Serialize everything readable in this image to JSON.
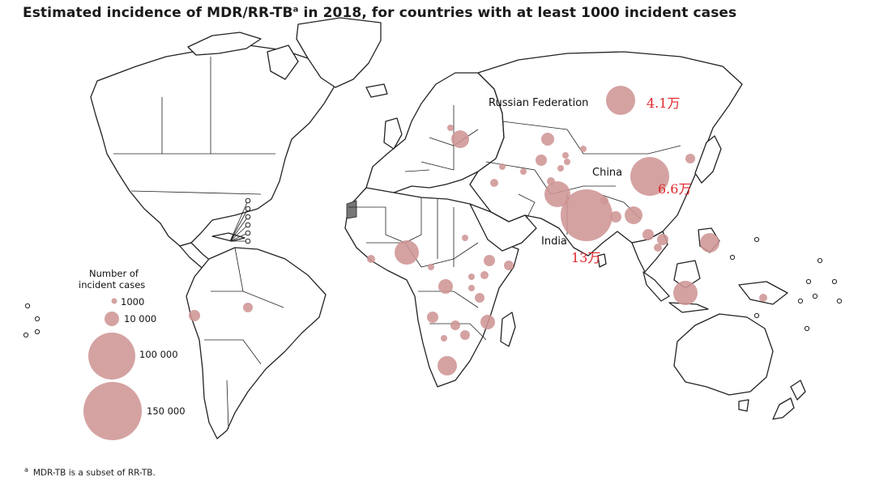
{
  "title": {
    "main": "Estimated incidence of MDR/RR-TB",
    "sup": "a",
    "rest": " in 2018, for countries with at least 1000 incident cases"
  },
  "footnote": {
    "marker": "a",
    "text": "MDR-TB is a subset of RR-TB."
  },
  "bubble_color": "#cf9595",
  "legend": {
    "title_line1": "Number of",
    "title_line2": "incident cases",
    "items": [
      {
        "value": 1000,
        "label": "1000"
      },
      {
        "value": 10000,
        "label": "10 000"
      },
      {
        "value": 100000,
        "label": "100 000"
      },
      {
        "value": 150000,
        "label": "150 000"
      }
    ]
  },
  "countries": [
    {
      "name": "Russian Federation",
      "annotation": "4.1万"
    },
    {
      "name": "China",
      "annotation": "6.6万"
    },
    {
      "name": "India",
      "annotation": "13万"
    }
  ]
}
